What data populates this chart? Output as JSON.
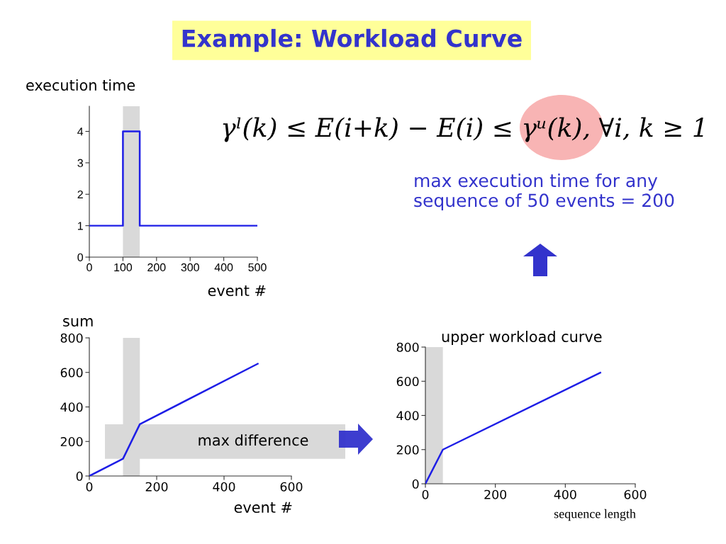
{
  "chart_data": [
    {
      "type": "step",
      "title": "Example: Workload Curve",
      "xlabel": "event #",
      "ylabel": "execution time",
      "x": [
        0,
        100,
        150,
        500
      ],
      "series": [
        {
          "color": "#1e1ee6",
          "values": [
            1,
            4,
            1,
            1
          ]
        }
      ],
      "xlim": [
        0,
        500
      ],
      "ylim": [
        0,
        4.8
      ],
      "xticks": [
        0,
        100,
        200,
        300,
        400,
        500
      ],
      "yticks": [
        0,
        1,
        2,
        3,
        4
      ],
      "bands": [
        {
          "axis": "x",
          "from": 100,
          "to": 150,
          "color": "#d9d9d9"
        }
      ]
    },
    {
      "type": "line",
      "xlabel": "event #",
      "ylabel": "sum",
      "x": [
        0,
        100,
        150,
        500
      ],
      "series": [
        {
          "color": "#1e1ee6",
          "values": [
            0,
            100,
            300,
            650
          ]
        }
      ],
      "xlim": [
        0,
        600
      ],
      "ylim": [
        0,
        800
      ],
      "xticks": [
        0,
        200,
        400,
        600
      ],
      "yticks": [
        0,
        200,
        400,
        600,
        800
      ],
      "bands": [
        {
          "axis": "x",
          "from": 100,
          "to": 150,
          "color": "#d9d9d9"
        },
        {
          "axis": "y",
          "from": 100,
          "to": 300,
          "label": "max difference",
          "color": "#d9d9d9"
        }
      ]
    },
    {
      "type": "line",
      "title": "upper workload curve",
      "xlabel": "sequence length",
      "annotations": [
        "γˡ(k) ≤ E(i+k) − E(i) ≤ γᵘ(k), ∀i, k ≥ 1",
        "max execution time for any\nsequence of 50 events = 200"
      ],
      "x": [
        0,
        50,
        500
      ],
      "series": [
        {
          "color": "#1e1ee6",
          "values": [
            0,
            200,
            650
          ]
        }
      ],
      "xlim": [
        0,
        600
      ],
      "ylim": [
        0,
        800
      ],
      "xticks": [
        0,
        200,
        400,
        600
      ],
      "yticks": [
        0,
        200,
        400,
        600,
        800
      ],
      "bands": [
        {
          "axis": "x",
          "from": 0,
          "to": 50,
          "color": "#d9d9d9"
        }
      ]
    }
  ]
}
